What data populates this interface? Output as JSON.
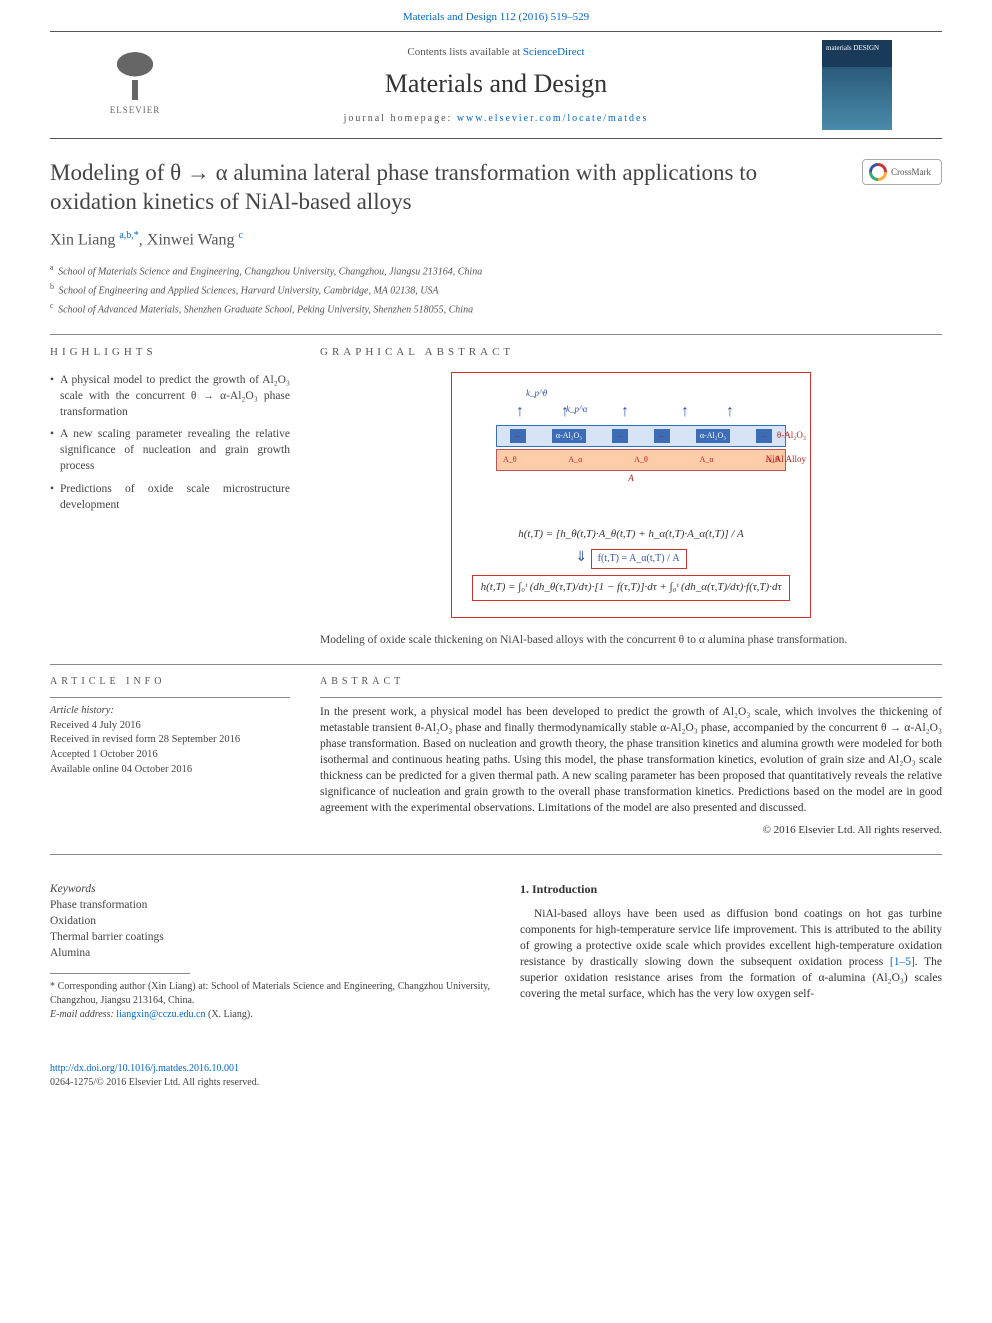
{
  "journal": {
    "citation": "Materials and Design 112 (2016) 519–529",
    "contents_line_prefix": "Contents lists available at ",
    "contents_line_link": "ScienceDirect",
    "title": "Materials and Design",
    "homepage_prefix": "journal homepage: ",
    "homepage_url": "www.elsevier.com/locate/matdes",
    "publisher": "ELSEVIER",
    "cover_text": "materials\nDESIGN"
  },
  "crossmark_label": "CrossMark",
  "article": {
    "title": "Modeling of θ → α alumina lateral phase transformation with applications to oxidation kinetics of NiAl-based alloys",
    "authors_html": "Xin Liang <sup>a,b,*</sup>, Xinwei Wang <sup>c</sup>",
    "affiliations": [
      {
        "sup": "a",
        "text": "School of Materials Science and Engineering, Changzhou University, Changzhou, Jiangsu 213164, China"
      },
      {
        "sup": "b",
        "text": "School of Engineering and Applied Sciences, Harvard University, Cambridge, MA 02138, USA"
      },
      {
        "sup": "c",
        "text": "School of Advanced Materials, Shenzhen Graduate School, Peking University, Shenzhen 518055, China"
      }
    ]
  },
  "highlights": {
    "heading": "HIGHLIGHTS",
    "items": [
      "A physical model to predict the growth of Al₂O₃ scale with the concurrent θ → α-Al₂O₃ phase transformation",
      "A new scaling parameter revealing the relative significance of nucleation and grain growth process",
      "Predictions of oxide scale microstructure development"
    ]
  },
  "graphical_abstract": {
    "heading": "GRAPHICAL ABSTRACT",
    "schematic": {
      "k_theta_label": "k_p^θ",
      "k_alpha_label": "k_p^α",
      "theta_band": "θ-Al₂O₃",
      "alpha_chip": "α-Al₂O₃",
      "nial_band": "NiAl Alloy",
      "A_labels": [
        "A_θ",
        "A_α",
        "A_θ",
        "A_α",
        "A_θ"
      ],
      "overall_A": "A"
    },
    "formula1": "h(t,T) = [h_θ(t,T)·A_θ(t,T) + h_α(t,T)·A_α(t,T)] / A",
    "formula_f": "f(t,T) = A_α(t,T) / A",
    "formula2": "h(t,T) = ∫₀ᵗ (dh_θ(τ,T)/dτ)·[1 − f(τ,T)]·dτ + ∫₀ᵗ (dh_α(τ,T)/dτ)·f(τ,T)·dτ",
    "caption": "Modeling of oxide scale thickening on NiAl-based alloys with the concurrent θ to α alumina phase transformation.",
    "colors": {
      "box_border": "#c33",
      "theta_fill": "#d6e4f5",
      "theta_border": "#3a6db5",
      "alpha_fill": "#3a6db5",
      "nial_fill": "#fca",
      "nial_border": "#b55",
      "arrow_color": "#35a",
      "label_color": "#b22"
    }
  },
  "article_info": {
    "heading": "ARTICLE INFO",
    "history_label": "Article history:",
    "history": [
      "Received 4 July 2016",
      "Received in revised form 28 September 2016",
      "Accepted 1 October 2016",
      "Available online 04 October 2016"
    ]
  },
  "abstract": {
    "heading": "ABSTRACT",
    "text": "In the present work, a physical model has been developed to predict the growth of Al₂O₃ scale, which involves the thickening of metastable transient θ-Al₂O₃ phase and finally thermodynamically stable α-Al₂O₃ phase, accompanied by the concurrent θ → α-Al₂O₃ phase transformation. Based on nucleation and growth theory, the phase transition kinetics and alumina growth were modeled for both isothermal and continuous heating paths. Using this model, the phase transformation kinetics, evolution of grain size and Al₂O₃ scale thickness can be predicted for a given thermal path. A new scaling parameter has been proposed that quantitatively reveals the relative significance of nucleation and grain growth to the overall phase transformation kinetics. Predictions based on the model are in good agreement with the experimental observations. Limitations of the model are also presented and discussed.",
    "copyright": "© 2016 Elsevier Ltd. All rights reserved."
  },
  "keywords": {
    "label": "Keywords",
    "items": [
      "Phase transformation",
      "Oxidation",
      "Thermal barrier coatings",
      "Alumina"
    ]
  },
  "introduction": {
    "heading": "1. Introduction",
    "text": "NiAl-based alloys have been used as diffusion bond coatings on hot gas turbine components for high-temperature service life improvement. This is attributed to the ability of growing a protective oxide scale which provides excellent high-temperature oxidation resistance by drastically slowing down the subsequent oxidation process [1–5]. The superior oxidation resistance arises from the formation of α-alumina (Al₂O₃) scales covering the metal surface, which has the very low oxygen self-",
    "ref_link": "[1–5]"
  },
  "footnote": {
    "corresponding": "* Corresponding author (Xin Liang) at: School of Materials Science and Engineering, Changzhou University, Changzhou, Jiangsu 213164, China.",
    "email_label": "E-mail address: ",
    "email": "liangxin@cczu.edu.cn",
    "email_suffix": " (X. Liang)."
  },
  "footer": {
    "doi": "http://dx.doi.org/10.1016/j.matdes.2016.10.001",
    "issn_line": "0264-1275/© 2016 Elsevier Ltd. All rights reserved."
  }
}
